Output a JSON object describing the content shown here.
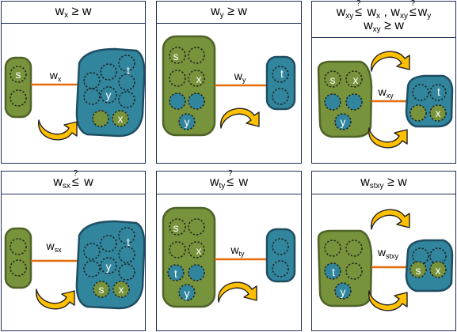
{
  "colors": {
    "green_fill": "#77933c",
    "green_stroke": "#4f6228",
    "blue_fill": "#31859c",
    "blue_stroke": "#1f4e63",
    "edge": "#e46c0a",
    "arrow_fill": "#ffc000",
    "frame": "#1f2f55"
  },
  "panels": [
    {
      "id": "p1",
      "header": {
        "parts": [
          {
            "t": "w"
          },
          {
            "sub": "x"
          },
          {
            "t": " ≥ w"
          }
        ]
      },
      "edge_label": {
        "main": "w",
        "sub": "x"
      },
      "left_labels": [
        "s"
      ],
      "right_labels": [
        "t",
        "y",
        "x"
      ]
    },
    {
      "id": "p2",
      "header": {
        "parts": [
          {
            "t": "w"
          },
          {
            "sub": "y"
          },
          {
            "t": " ≥ w"
          }
        ]
      },
      "edge_label": {
        "main": "w",
        "sub": "y"
      },
      "left_labels": [
        "s",
        "x",
        "y"
      ],
      "right_labels": [
        "t"
      ]
    },
    {
      "id": "p3",
      "header": {
        "line1": [
          {
            "t": "w"
          },
          {
            "sub": "xy"
          },
          {
            "rel": "≤",
            "q": "?"
          },
          {
            "t": " w"
          },
          {
            "sub": "x"
          },
          {
            "t": " , w"
          },
          {
            "sub": "xy"
          },
          {
            "rel": "≤",
            "q": "?"
          },
          {
            "t": "w"
          },
          {
            "sub": "y"
          }
        ],
        "line2": [
          {
            "t": "w"
          },
          {
            "sub": "xy"
          },
          {
            "t": " ≥ w"
          }
        ]
      },
      "edge_label": {
        "main": "w",
        "sub": "xy"
      },
      "left_labels": [
        "s",
        "x",
        "y"
      ],
      "right_labels": [
        "t",
        "x"
      ]
    },
    {
      "id": "p4",
      "header": {
        "parts": [
          {
            "t": "w"
          },
          {
            "sub": "sx"
          },
          {
            "rel": "≤",
            "q": "?"
          },
          {
            "t": " w"
          }
        ]
      },
      "edge_label": {
        "main": "w",
        "sub": "sx"
      },
      "left_labels": [],
      "right_labels": [
        "t",
        "y",
        "s",
        "x"
      ]
    },
    {
      "id": "p5",
      "header": {
        "parts": [
          {
            "t": "w"
          },
          {
            "sub": "ty"
          },
          {
            "rel": "≤",
            "q": "?"
          },
          {
            "t": " w"
          }
        ]
      },
      "edge_label": {
        "main": "w",
        "sub": "ty"
      },
      "left_labels": [
        "s",
        "x",
        "t",
        "y"
      ],
      "right_labels": []
    },
    {
      "id": "p6",
      "header": {
        "parts": [
          {
            "t": "w"
          },
          {
            "sub": "stxy"
          },
          {
            "t": " ≥ w"
          }
        ]
      },
      "edge_label": {
        "main": "w",
        "sub": "stxy"
      },
      "left_labels": [
        "t",
        "y"
      ],
      "right_labels": [
        "s",
        "x"
      ]
    }
  ]
}
